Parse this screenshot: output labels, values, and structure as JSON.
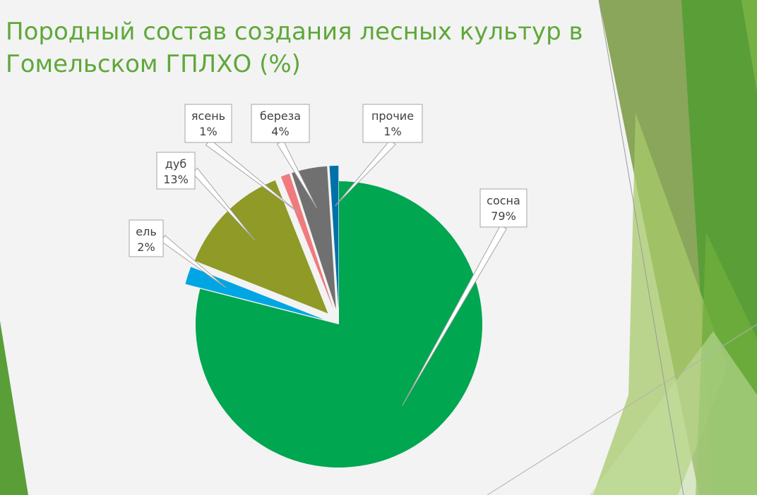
{
  "slide": {
    "title_line1": "Породный состав создания лесных культур в",
    "title_line2": "Гомельском ГПЛХО (%)"
  },
  "colors": {
    "background": "#f3f3f3",
    "title": "#5fa83a",
    "label_text": "#404040",
    "label_border": "#a6a6a6",
    "decor_greens": [
      "#5a9e38",
      "#76b043",
      "#8aa65a",
      "#a8c96b",
      "#c2dca0"
    ]
  },
  "chart_data": {
    "type": "pie",
    "title": "",
    "start_angle_deg": 0,
    "direction": "clockwise",
    "exploded_slices": [
      "ель",
      "дуб",
      "ясень",
      "береза",
      "прочие"
    ],
    "slices": [
      {
        "label": "сосна",
        "value": 79,
        "value_label": "79%",
        "color": "#00a650"
      },
      {
        "label": "ель",
        "value": 2,
        "value_label": "2%",
        "color": "#00a5e3"
      },
      {
        "label": "дуб",
        "value": 13,
        "value_label": "13%",
        "color": "#8f9a27"
      },
      {
        "label": "ясень",
        "value": 1,
        "value_label": "1%",
        "color": "#f07a7e"
      },
      {
        "label": "береза",
        "value": 4,
        "value_label": "4%",
        "color": "#707070"
      },
      {
        "label": "прочие",
        "value": 1,
        "value_label": "1%",
        "color": "#0071a8"
      }
    ]
  }
}
